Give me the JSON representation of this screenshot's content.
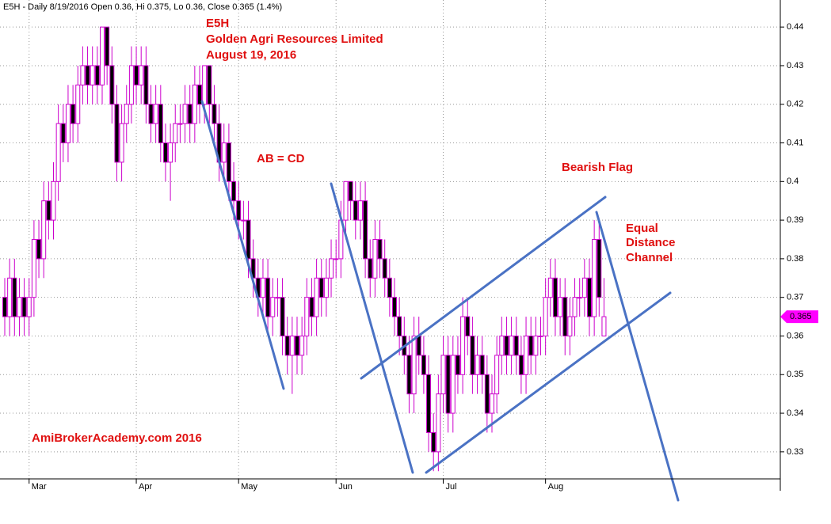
{
  "chart_data": {
    "type": "candlestick",
    "title": "E5H - Daily 8/19/2016 Open 0.36, Hi 0.375, Lo 0.36, Close 0.365 (1.4%)",
    "annotations": [
      "E5H",
      "Golden Agri Resources Limited",
      "August 19, 2016",
      "AB = CD",
      "Bearish Flag",
      "Equal",
      "Distance",
      "Channel",
      "AmiBrokerAcademy.com  2016"
    ],
    "categories": [
      null,
      null,
      null,
      null,
      null,
      "Mar",
      null,
      null,
      null,
      null,
      null,
      null,
      null,
      null,
      null,
      null,
      null,
      null,
      null,
      null,
      null,
      null,
      null,
      null,
      null,
      null,
      null,
      "Apr",
      null,
      null,
      null,
      null,
      null,
      null,
      null,
      null,
      null,
      null,
      null,
      null,
      null,
      null,
      null,
      null,
      null,
      null,
      null,
      null,
      "May",
      null,
      null,
      null,
      null,
      null,
      null,
      null,
      null,
      null,
      null,
      null,
      null,
      null,
      null,
      null,
      null,
      null,
      null,
      null,
      "Jun",
      null,
      null,
      null,
      null,
      null,
      null,
      null,
      null,
      null,
      null,
      null,
      null,
      null,
      null,
      null,
      null,
      null,
      null,
      null,
      null,
      null,
      "Jul",
      null,
      null,
      null,
      null,
      null,
      null,
      null,
      null,
      null,
      null,
      null,
      null,
      null,
      null,
      null,
      null,
      null,
      null,
      null,
      null,
      "Aug",
      null,
      null,
      null,
      null,
      null,
      null,
      null,
      null,
      null,
      null,
      null,
      null
    ],
    "ohlc": {
      "open": [
        0.37,
        0.365,
        0.375,
        0.365,
        0.37,
        0.365,
        0.37,
        0.385,
        0.38,
        0.395,
        0.39,
        0.4,
        0.415,
        0.41,
        0.42,
        0.415,
        0.425,
        0.43,
        0.425,
        0.43,
        0.425,
        0.44,
        0.43,
        0.42,
        0.405,
        0.415,
        0.42,
        0.43,
        0.425,
        0.43,
        0.42,
        0.415,
        0.42,
        0.41,
        0.405,
        0.41,
        0.415,
        0.415,
        0.42,
        0.415,
        0.425,
        0.42,
        0.43,
        0.42,
        0.415,
        0.405,
        0.41,
        0.4,
        0.395,
        0.39,
        0.39,
        0.38,
        0.375,
        0.37,
        0.375,
        0.365,
        0.37,
        0.37,
        0.36,
        0.355,
        0.36,
        0.355,
        0.36,
        0.37,
        0.365,
        0.375,
        0.37,
        0.375,
        0.38,
        0.38,
        0.39,
        0.4,
        0.395,
        0.39,
        0.395,
        0.38,
        0.375,
        0.385,
        0.38,
        0.375,
        0.37,
        0.365,
        0.36,
        0.355,
        0.345,
        0.36,
        0.355,
        0.35,
        0.335,
        0.33,
        0.345,
        0.355,
        0.34,
        0.355,
        0.35,
        0.365,
        0.36,
        0.35,
        0.355,
        0.35,
        0.34,
        0.345,
        0.355,
        0.36,
        0.355,
        0.36,
        0.355,
        0.35,
        0.36,
        0.355,
        0.36,
        0.36,
        0.37,
        0.375,
        0.365,
        0.37,
        0.36,
        0.365,
        0.37,
        0.37,
        0.375,
        0.365,
        0.385,
        0.36
      ],
      "high": [
        0.375,
        0.38,
        0.38,
        0.375,
        0.375,
        0.375,
        0.39,
        0.39,
        0.4,
        0.4,
        0.405,
        0.42,
        0.42,
        0.425,
        0.425,
        0.43,
        0.435,
        0.435,
        0.435,
        0.435,
        0.44,
        0.44,
        0.435,
        0.425,
        0.42,
        0.425,
        0.435,
        0.435,
        0.435,
        0.435,
        0.425,
        0.425,
        0.425,
        0.415,
        0.415,
        0.42,
        0.42,
        0.425,
        0.425,
        0.43,
        0.43,
        0.43,
        0.43,
        0.425,
        0.42,
        0.415,
        0.415,
        0.405,
        0.4,
        0.395,
        0.395,
        0.385,
        0.38,
        0.38,
        0.38,
        0.375,
        0.375,
        0.375,
        0.365,
        0.365,
        0.365,
        0.365,
        0.375,
        0.375,
        0.38,
        0.38,
        0.38,
        0.385,
        0.385,
        0.395,
        0.4,
        0.4,
        0.4,
        0.4,
        0.4,
        0.385,
        0.39,
        0.39,
        0.385,
        0.38,
        0.375,
        0.37,
        0.365,
        0.36,
        0.365,
        0.365,
        0.36,
        0.355,
        0.34,
        0.35,
        0.36,
        0.36,
        0.36,
        0.36,
        0.37,
        0.37,
        0.365,
        0.36,
        0.36,
        0.355,
        0.35,
        0.36,
        0.365,
        0.365,
        0.365,
        0.365,
        0.36,
        0.365,
        0.365,
        0.365,
        0.365,
        0.375,
        0.38,
        0.38,
        0.375,
        0.375,
        0.37,
        0.375,
        0.375,
        0.38,
        0.38,
        0.39,
        0.39,
        0.375
      ],
      "low": [
        0.36,
        0.36,
        0.36,
        0.36,
        0.36,
        0.36,
        0.365,
        0.375,
        0.375,
        0.385,
        0.385,
        0.395,
        0.405,
        0.405,
        0.41,
        0.41,
        0.42,
        0.42,
        0.42,
        0.42,
        0.42,
        0.425,
        0.415,
        0.4,
        0.4,
        0.41,
        0.415,
        0.42,
        0.42,
        0.415,
        0.41,
        0.41,
        0.405,
        0.4,
        0.395,
        0.405,
        0.41,
        0.41,
        0.41,
        0.41,
        0.415,
        0.415,
        0.415,
        0.41,
        0.4,
        0.4,
        0.395,
        0.39,
        0.385,
        0.385,
        0.375,
        0.37,
        0.365,
        0.365,
        0.36,
        0.36,
        0.365,
        0.355,
        0.35,
        0.345,
        0.35,
        0.35,
        0.355,
        0.36,
        0.36,
        0.365,
        0.365,
        0.37,
        0.375,
        0.375,
        0.385,
        0.39,
        0.385,
        0.385,
        0.375,
        0.37,
        0.37,
        0.375,
        0.37,
        0.365,
        0.36,
        0.355,
        0.35,
        0.34,
        0.34,
        0.35,
        0.345,
        0.33,
        0.325,
        0.325,
        0.34,
        0.335,
        0.335,
        0.345,
        0.345,
        0.355,
        0.345,
        0.345,
        0.345,
        0.335,
        0.335,
        0.34,
        0.35,
        0.35,
        0.35,
        0.35,
        0.345,
        0.345,
        0.35,
        0.35,
        0.355,
        0.355,
        0.365,
        0.36,
        0.36,
        0.355,
        0.355,
        0.36,
        0.365,
        0.365,
        0.36,
        0.36,
        0.365,
        0.36
      ],
      "close": [
        0.365,
        0.375,
        0.365,
        0.37,
        0.365,
        0.37,
        0.385,
        0.38,
        0.395,
        0.39,
        0.4,
        0.415,
        0.41,
        0.42,
        0.415,
        0.425,
        0.43,
        0.425,
        0.43,
        0.425,
        0.44,
        0.43,
        0.42,
        0.405,
        0.415,
        0.42,
        0.43,
        0.425,
        0.43,
        0.42,
        0.415,
        0.42,
        0.41,
        0.405,
        0.41,
        0.415,
        0.415,
        0.42,
        0.415,
        0.425,
        0.42,
        0.43,
        0.42,
        0.415,
        0.405,
        0.41,
        0.4,
        0.395,
        0.39,
        0.39,
        0.38,
        0.375,
        0.37,
        0.375,
        0.365,
        0.37,
        0.37,
        0.36,
        0.355,
        0.36,
        0.355,
        0.36,
        0.37,
        0.365,
        0.375,
        0.37,
        0.375,
        0.38,
        0.38,
        0.39,
        0.4,
        0.395,
        0.39,
        0.395,
        0.38,
        0.375,
        0.385,
        0.38,
        0.375,
        0.37,
        0.365,
        0.36,
        0.355,
        0.345,
        0.36,
        0.355,
        0.35,
        0.335,
        0.33,
        0.345,
        0.355,
        0.34,
        0.355,
        0.35,
        0.365,
        0.36,
        0.35,
        0.355,
        0.35,
        0.34,
        0.345,
        0.355,
        0.36,
        0.355,
        0.36,
        0.355,
        0.35,
        0.36,
        0.355,
        0.36,
        0.36,
        0.37,
        0.375,
        0.365,
        0.37,
        0.36,
        0.365,
        0.37,
        0.37,
        0.375,
        0.365,
        0.385,
        0.37,
        0.365
      ]
    },
    "up_color": "#ffffff",
    "down_color": "#000000",
    "wick_color": "#cc00cc",
    "last_price_color": "#ff00ff",
    "ylim": [
      0.323,
      0.447
    ],
    "yticks": [
      0.33,
      0.34,
      0.35,
      0.36,
      0.37,
      0.38,
      0.39,
      0.4,
      0.41,
      0.42,
      0.43,
      0.44
    ],
    "grid": true
  }
}
